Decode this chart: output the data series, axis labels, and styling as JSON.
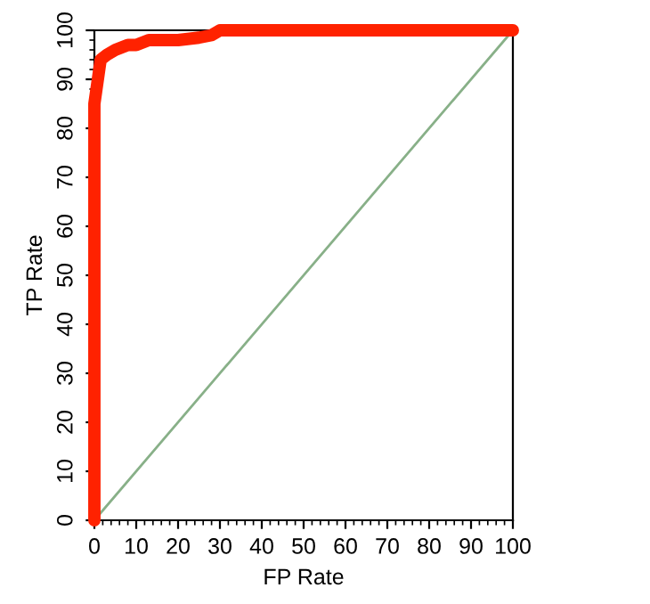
{
  "chart_data": {
    "type": "line",
    "xlabel": "FP Rate",
    "ylabel": "TP Rate",
    "xlim": [
      0,
      100
    ],
    "ylim": [
      0,
      100
    ],
    "xticks": [
      0,
      10,
      20,
      30,
      40,
      50,
      60,
      70,
      80,
      90,
      100
    ],
    "yticks": [
      0,
      10,
      20,
      30,
      40,
      50,
      60,
      70,
      80,
      90,
      100
    ],
    "grid": false,
    "legend": false,
    "marker": "none",
    "line_style": "solid",
    "series": [
      {
        "color": "#ff2200",
        "x": [
          0,
          0,
          0.5,
          1,
          1.5,
          3,
          5,
          8,
          10,
          13,
          20,
          25,
          28,
          30,
          100
        ],
        "values": [
          0,
          85,
          88,
          91,
          94,
          95,
          96,
          97,
          97,
          98,
          98,
          98.5,
          99,
          100,
          100
        ]
      },
      {
        "color": "#88b088",
        "x": [
          0,
          100
        ],
        "values": [
          0,
          100
        ]
      }
    ]
  }
}
